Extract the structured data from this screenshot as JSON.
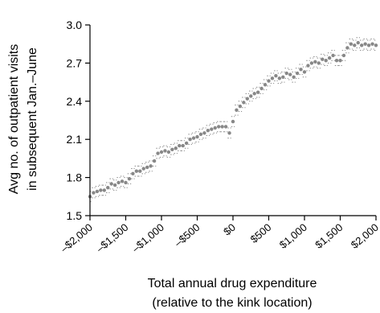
{
  "chart_data": {
    "type": "scatter",
    "title": "",
    "xlabel": [
      "Total annual drug expenditure",
      "(relative to the kink location)"
    ],
    "ylabel": [
      "Avg no. of outpatient visits",
      "in subsequent Jan.–June"
    ],
    "xlim": [
      -2000,
      2000
    ],
    "ylim": [
      1.5,
      3.0
    ],
    "yticks": [
      {
        "value": 1.5,
        "label": "1.5"
      },
      {
        "value": 1.8,
        "label": "1.8"
      },
      {
        "value": 2.1,
        "label": "2.1"
      },
      {
        "value": 2.4,
        "label": "2.4"
      },
      {
        "value": 2.7,
        "label": "2.7"
      },
      {
        "value": 3.0,
        "label": "3.0"
      }
    ],
    "xticks": [
      {
        "value": -2000,
        "label": "–$2,000"
      },
      {
        "value": -1500,
        "label": "–$1,500"
      },
      {
        "value": -1000,
        "label": "–$1,000"
      },
      {
        "value": -500,
        "label": "–$500"
      },
      {
        "value": 0,
        "label": "$0"
      },
      {
        "value": 500,
        "label": "$500"
      },
      {
        "value": 1000,
        "label": "$1,000"
      },
      {
        "value": 1500,
        "label": "$1,500"
      },
      {
        "value": 2000,
        "label": "$2,000"
      }
    ],
    "grid": false,
    "colors": {
      "points": "#888888",
      "ci": "#8c8c8c",
      "axis": "#000000"
    },
    "bin_width": 50,
    "series": [
      {
        "x": [
          -2000,
          -1950,
          -1900,
          -1850,
          -1800,
          -1750,
          -1700,
          -1650,
          -1600,
          -1550,
          -1500,
          -1450,
          -1400,
          -1350,
          -1300,
          -1250,
          -1200,
          -1150,
          -1100,
          -1050,
          -1000,
          -950,
          -900,
          -850,
          -800,
          -750,
          -700,
          -650,
          -600,
          -550,
          -500,
          -450,
          -400,
          -350,
          -300,
          -250,
          -200,
          -150,
          -100,
          -50,
          0,
          50,
          100,
          150,
          200,
          250,
          300,
          350,
          400,
          450,
          500,
          550,
          600,
          650,
          700,
          750,
          800,
          850,
          900,
          950,
          1000,
          1050,
          1100,
          1150,
          1200,
          1250,
          1300,
          1350,
          1400,
          1450,
          1500,
          1550,
          1600,
          1650,
          1700,
          1750,
          1800,
          1850,
          1900,
          1950,
          2000
        ],
        "y": [
          1.65,
          1.68,
          1.69,
          1.7,
          1.7,
          1.72,
          1.75,
          1.74,
          1.76,
          1.77,
          1.76,
          1.79,
          1.83,
          1.85,
          1.85,
          1.87,
          1.88,
          1.89,
          1.93,
          1.99,
          2.0,
          2.01,
          2.0,
          2.02,
          2.03,
          2.05,
          2.05,
          2.07,
          2.1,
          2.11,
          2.12,
          2.14,
          2.15,
          2.17,
          2.18,
          2.19,
          2.2,
          2.2,
          2.2,
          2.15,
          2.24,
          2.33,
          2.36,
          2.39,
          2.42,
          2.44,
          2.46,
          2.47,
          2.5,
          2.53,
          2.56,
          2.58,
          2.6,
          2.58,
          2.59,
          2.62,
          2.61,
          2.59,
          2.62,
          2.65,
          2.63,
          2.68,
          2.7,
          2.71,
          2.7,
          2.73,
          2.72,
          2.74,
          2.76,
          2.72,
          2.72,
          2.76,
          2.82,
          2.85,
          2.84,
          2.86,
          2.84,
          2.85,
          2.84,
          2.85,
          2.84
        ],
        "ci_half_width": 0.04
      }
    ]
  }
}
